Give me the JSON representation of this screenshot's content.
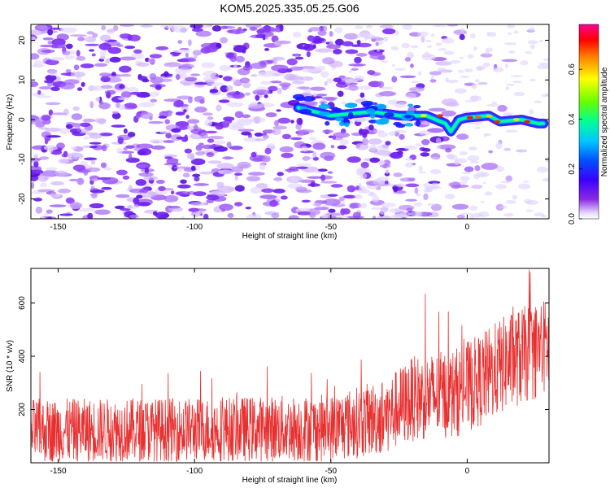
{
  "chart_data": [
    {
      "type": "heatmap",
      "title": "KOM5.2025.335.05.25.G06",
      "xlabel": "Height of straight line (km)",
      "ylabel": "Frequency (Hz)",
      "xlim": [
        -160,
        30
      ],
      "ylim": [
        -25,
        24
      ],
      "xticks": [
        -150,
        -100,
        -50,
        0
      ],
      "yticks": [
        -20,
        -10,
        0,
        10,
        20
      ],
      "colorbar": {
        "label": "Normalized spectral amplitude",
        "range": [
          0.0,
          0.78
        ],
        "ticks": [
          0.0,
          0.2,
          0.4,
          0.6
        ],
        "colormap": "rainbow"
      },
      "signal_ridge": {
        "description": "narrow-band signal near 0 Hz",
        "points": [
          {
            "x": -62,
            "y": 3
          },
          {
            "x": -50,
            "y": 1
          },
          {
            "x": -35,
            "y": 2
          },
          {
            "x": -25,
            "y": 1
          },
          {
            "x": -15,
            "y": 1
          },
          {
            "x": -8,
            "y": -1
          },
          {
            "x": -6,
            "y": -3
          },
          {
            "x": -3,
            "y": 0
          },
          {
            "x": 0,
            "y": 0.5
          },
          {
            "x": 8,
            "y": 1
          },
          {
            "x": 12,
            "y": -0.5
          },
          {
            "x": 20,
            "y": 0
          },
          {
            "x": 26,
            "y": -1
          }
        ]
      }
    },
    {
      "type": "line",
      "title": "",
      "xlabel": "Height of straight line (km)",
      "ylabel": "SNR (10 * v/v)",
      "xlim": [
        -160,
        30
      ],
      "ylim": [
        0,
        730
      ],
      "xticks": [
        -150,
        -100,
        -50,
        0
      ],
      "yticks": [
        200,
        400,
        600
      ],
      "series": [
        {
          "name": "SNR",
          "color": "#e83030",
          "trend_x": [
            -160,
            -100,
            -50,
            -30,
            -20,
            -5,
            5,
            15,
            30
          ],
          "trend_mean": [
            120,
            125,
            130,
            175,
            240,
            260,
            310,
            380,
            440
          ],
          "trend_spread": [
            150,
            150,
            160,
            180,
            200,
            210,
            220,
            230,
            230
          ]
        }
      ]
    }
  ]
}
